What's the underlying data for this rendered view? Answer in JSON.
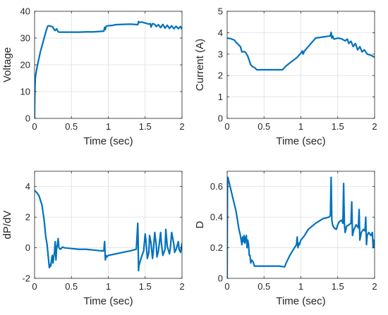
{
  "chart_data": [
    {
      "type": "line",
      "xlabel": "Time (sec)",
      "ylabel": "Voltage",
      "xlim": [
        0,
        2
      ],
      "ylim": [
        0,
        40
      ],
      "xticks": [
        "0",
        "0.5",
        "1",
        "1.5",
        "2"
      ],
      "xtick_values": [
        0,
        0.5,
        1,
        1.5,
        2
      ],
      "yticks": [
        "0",
        "10",
        "20",
        "30",
        "40"
      ],
      "ytick_values": [
        0,
        10,
        20,
        30,
        40
      ],
      "grid": true,
      "series": [
        {
          "color": "#0072BD",
          "x": [
            0,
            0.003,
            0.006,
            0.01,
            0.02,
            0.04,
            0.06,
            0.08,
            0.1,
            0.12,
            0.14,
            0.16,
            0.18,
            0.2,
            0.22,
            0.24,
            0.25,
            0.26,
            0.27,
            0.28,
            0.29,
            0.3,
            0.31,
            0.32,
            0.33,
            0.35,
            0.4,
            0.5,
            0.6,
            0.7,
            0.8,
            0.9,
            0.94,
            0.95,
            0.96,
            0.97,
            0.98,
            1.0,
            1.05,
            1.1,
            1.2,
            1.3,
            1.4,
            1.41,
            1.42,
            1.45,
            1.5,
            1.55,
            1.57,
            1.58,
            1.6,
            1.63,
            1.65,
            1.68,
            1.71,
            1.74,
            1.77,
            1.8,
            1.83,
            1.86,
            1.89,
            1.92,
            1.95,
            1.98,
            2.0
          ],
          "y": [
            0,
            8,
            12,
            15,
            17,
            20,
            22.5,
            25,
            27,
            29,
            31,
            33,
            34.5,
            34.6,
            34.4,
            34.3,
            34,
            33.5,
            33,
            32.8,
            33.2,
            33.4,
            32.9,
            32.4,
            32.2,
            32.2,
            32.2,
            32.2,
            32.2,
            32.3,
            32.3,
            32.5,
            32.6,
            34,
            33.2,
            34.3,
            34.5,
            34.6,
            34.7,
            35,
            35.1,
            35.2,
            35,
            36.2,
            35.8,
            36,
            35.6,
            35.2,
            35.4,
            34.1,
            35.4,
            35.1,
            34.3,
            35,
            33.9,
            35.1,
            33.7,
            34.8,
            33.6,
            34.6,
            33.5,
            34.4,
            33.5,
            34.3,
            33.3
          ]
        }
      ]
    },
    {
      "type": "line",
      "xlabel": "Time (sec)",
      "ylabel": "Current (A)",
      "xlim": [
        0,
        2
      ],
      "ylim": [
        0,
        5
      ],
      "xticks": [
        "0",
        "0.5",
        "1",
        "1.5",
        "2"
      ],
      "xtick_values": [
        0,
        0.5,
        1,
        1.5,
        2
      ],
      "yticks": [
        "0",
        "1",
        "2",
        "3",
        "4",
        "5"
      ],
      "ytick_values": [
        0,
        1,
        2,
        3,
        4,
        5
      ],
      "grid": true,
      "series": [
        {
          "color": "#0072BD",
          "x": [
            0,
            0.05,
            0.1,
            0.12,
            0.15,
            0.18,
            0.2,
            0.23,
            0.25,
            0.28,
            0.3,
            0.32,
            0.35,
            0.38,
            0.4,
            0.5,
            0.6,
            0.7,
            0.75,
            0.8,
            0.9,
            0.95,
            1.0,
            1.02,
            1.03,
            1.05,
            1.1,
            1.2,
            1.3,
            1.4,
            1.41,
            1.42,
            1.43,
            1.45,
            1.5,
            1.55,
            1.6,
            1.63,
            1.65,
            1.68,
            1.71,
            1.74,
            1.77,
            1.8,
            1.83,
            1.86,
            1.9,
            1.95,
            2.0
          ],
          "y": [
            3.75,
            3.72,
            3.65,
            3.55,
            3.45,
            3.35,
            3.1,
            3.12,
            3.08,
            2.9,
            2.7,
            2.5,
            2.4,
            2.35,
            2.27,
            2.27,
            2.27,
            2.27,
            2.27,
            2.45,
            2.72,
            2.85,
            3.05,
            3.15,
            3.0,
            3.15,
            3.35,
            3.75,
            3.8,
            3.85,
            4.02,
            3.75,
            3.85,
            3.7,
            3.75,
            3.72,
            3.62,
            3.7,
            3.5,
            3.6,
            3.35,
            3.5,
            3.2,
            3.35,
            3.1,
            3.2,
            3.0,
            2.95,
            2.85
          ]
        }
      ]
    },
    {
      "type": "line",
      "xlabel": "Time (sec)",
      "ylabel": "dP/dV",
      "xlim": [
        0,
        2
      ],
      "ylim": [
        -2,
        5
      ],
      "xticks": [
        "0",
        "0.5",
        "1",
        "1.5",
        "2"
      ],
      "xtick_values": [
        0,
        0.5,
        1,
        1.5,
        2
      ],
      "yticks": [
        "-2",
        "0",
        "2",
        "4"
      ],
      "ytick_values": [
        -2,
        0,
        2,
        4
      ],
      "grid": true,
      "series": [
        {
          "color": "#0072BD",
          "x": [
            0,
            0.03,
            0.06,
            0.1,
            0.13,
            0.15,
            0.17,
            0.19,
            0.2,
            0.21,
            0.22,
            0.23,
            0.24,
            0.25,
            0.26,
            0.27,
            0.28,
            0.29,
            0.3,
            0.31,
            0.32,
            0.33,
            0.35,
            0.38,
            0.4,
            0.5,
            0.6,
            0.7,
            0.8,
            0.9,
            0.94,
            0.95,
            0.96,
            0.97,
            0.98,
            0.99,
            1.0,
            1.1,
            1.2,
            1.3,
            1.38,
            1.4,
            1.405,
            1.41,
            1.415,
            1.42,
            1.45,
            1.48,
            1.5,
            1.51,
            1.53,
            1.55,
            1.56,
            1.58,
            1.6,
            1.61,
            1.63,
            1.65,
            1.66,
            1.68,
            1.71,
            1.72,
            1.74,
            1.77,
            1.78,
            1.8,
            1.83,
            1.84,
            1.86,
            1.89,
            1.9,
            1.92,
            1.95,
            1.96,
            1.98,
            2.0
          ],
          "y": [
            3.75,
            3.6,
            3.4,
            2.8,
            1.8,
            0.8,
            0.2,
            -0.8,
            -1.3,
            -1.1,
            -1.2,
            -0.8,
            -0.5,
            -1.0,
            -0.6,
            -0.3,
            0.4,
            -0.8,
            0.0,
            0.2,
            0.6,
            0.0,
            -0.1,
            0.05,
            0.0,
            -0.05,
            -0.1,
            -0.1,
            -0.15,
            -0.2,
            -0.2,
            0.4,
            -0.8,
            -0.5,
            -0.6,
            -0.55,
            -0.5,
            -0.4,
            -0.3,
            -0.2,
            -0.1,
            1.6,
            0.5,
            -1.5,
            -1.2,
            -1.1,
            -0.6,
            -0.2,
            0.9,
            0.5,
            -0.7,
            -0.3,
            0.8,
            0.3,
            -0.7,
            -0.3,
            1.0,
            0.2,
            -0.6,
            -0.2,
            1.0,
            0.3,
            -0.5,
            -0.1,
            1.2,
            0.1,
            -0.4,
            -0.1,
            1.0,
            0.2,
            -0.3,
            -0.1,
            0.4,
            -0.1,
            -0.3,
            0.3
          ]
        }
      ]
    },
    {
      "type": "line",
      "xlabel": "Time (sec)",
      "ylabel": "D",
      "xlim": [
        0,
        2
      ],
      "ylim": [
        0,
        0.7
      ],
      "xticks": [
        "0",
        "0.5",
        "1",
        "1.5",
        "2"
      ],
      "xtick_values": [
        0,
        0.5,
        1,
        1.5,
        2
      ],
      "yticks": [
        "0",
        "0.2",
        "0.4",
        "0.6"
      ],
      "ytick_values": [
        0,
        0.2,
        0.4,
        0.6
      ],
      "grid": true,
      "series": [
        {
          "color": "#0072BD",
          "x": [
            0,
            0.002,
            0.004,
            0.006,
            0.01,
            0.03,
            0.05,
            0.08,
            0.1,
            0.12,
            0.14,
            0.16,
            0.18,
            0.2,
            0.21,
            0.22,
            0.23,
            0.24,
            0.25,
            0.26,
            0.27,
            0.28,
            0.29,
            0.3,
            0.31,
            0.32,
            0.33,
            0.35,
            0.37,
            0.4,
            0.5,
            0.6,
            0.7,
            0.78,
            0.8,
            0.85,
            0.9,
            0.94,
            0.95,
            0.96,
            0.97,
            0.98,
            1.0,
            1.05,
            1.1,
            1.2,
            1.3,
            1.38,
            1.4,
            1.41,
            1.42,
            1.43,
            1.45,
            1.48,
            1.5,
            1.52,
            1.55,
            1.57,
            1.58,
            1.59,
            1.6,
            1.62,
            1.65,
            1.68,
            1.69,
            1.7,
            1.72,
            1.75,
            1.78,
            1.79,
            1.8,
            1.82,
            1.85,
            1.87,
            1.88,
            1.89,
            1.9,
            1.92,
            1.95,
            1.97,
            1.98,
            1.99,
            2.0
          ],
          "y": [
            0,
            0.3,
            0.55,
            0.65,
            0.66,
            0.62,
            0.58,
            0.52,
            0.48,
            0.44,
            0.38,
            0.32,
            0.28,
            0.22,
            0.27,
            0.24,
            0.28,
            0.23,
            0.26,
            0.28,
            0.2,
            0.25,
            0.22,
            0.15,
            0.15,
            0.1,
            0.12,
            0.11,
            0.08,
            0.08,
            0.08,
            0.08,
            0.08,
            0.075,
            0.1,
            0.15,
            0.19,
            0.22,
            0.27,
            0.2,
            0.23,
            0.22,
            0.25,
            0.28,
            0.32,
            0.36,
            0.39,
            0.4,
            0.41,
            0.66,
            0.38,
            0.35,
            0.33,
            0.32,
            0.35,
            0.37,
            0.38,
            0.36,
            0.62,
            0.36,
            0.3,
            0.34,
            0.35,
            0.36,
            0.5,
            0.28,
            0.32,
            0.35,
            0.33,
            0.45,
            0.25,
            0.3,
            0.32,
            0.31,
            0.4,
            0.22,
            0.28,
            0.3,
            0.28,
            0.3,
            0.2,
            0.25,
            0.2
          ]
        }
      ]
    }
  ]
}
